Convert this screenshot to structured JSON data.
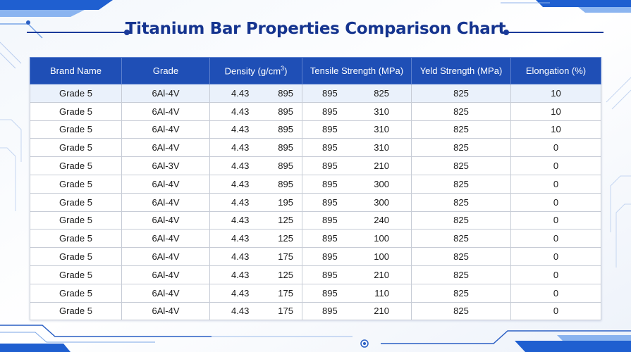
{
  "title": "Titanium Bar Properties Comparison Chart",
  "colors": {
    "header_bg": "#1f4fb6",
    "title": "#15348f",
    "accent": "#1a3a9a"
  },
  "headers": {
    "brand": "Brand Name",
    "grade": "Grade",
    "density": "Density (g/cm",
    "density_sup": "3",
    "density_close": ")",
    "tensile": "Tensile Strength (MPa)",
    "yield": "Yeld Strength (MPa)",
    "elongation": "Elongation (%)"
  },
  "rows": [
    {
      "brand": "Grade 5",
      "grade": "6Al-4V",
      "density": "4.43",
      "density_b": "895",
      "tensile": "895",
      "tensile_b": "825",
      "yield": "825",
      "elongation": "10"
    },
    {
      "brand": "Grade 5",
      "grade": "6Al-4V",
      "density": "4.43",
      "density_b": "895",
      "tensile": "895",
      "tensile_b": "310",
      "yield": "825",
      "elongation": "10"
    },
    {
      "brand": "Grade 5",
      "grade": "6Al-4V",
      "density": "4.43",
      "density_b": "895",
      "tensile": "895",
      "tensile_b": "310",
      "yield": "825",
      "elongation": "10"
    },
    {
      "brand": "Grade 5",
      "grade": "6Al-4V",
      "density": "4.43",
      "density_b": "895",
      "tensile": "895",
      "tensile_b": "310",
      "yield": "825",
      "elongation": "0"
    },
    {
      "brand": "Grade 5",
      "grade": "6Al-3V",
      "density": "4.43",
      "density_b": "895",
      "tensile": "895",
      "tensile_b": "210",
      "yield": "825",
      "elongation": "0"
    },
    {
      "brand": "Grade 5",
      "grade": "6Al-4V",
      "density": "4.43",
      "density_b": "895",
      "tensile": "895",
      "tensile_b": "300",
      "yield": "825",
      "elongation": "0"
    },
    {
      "brand": "Grade 5",
      "grade": "6Al-4V",
      "density": "4.43",
      "density_b": "195",
      "tensile": "895",
      "tensile_b": "300",
      "yield": "825",
      "elongation": "0"
    },
    {
      "brand": "Grade 5",
      "grade": "6Al-4V",
      "density": "4.43",
      "density_b": "125",
      "tensile": "895",
      "tensile_b": "240",
      "yield": "825",
      "elongation": "0"
    },
    {
      "brand": "Grade 5",
      "grade": "6Al-4V",
      "density": "4.43",
      "density_b": "125",
      "tensile": "895",
      "tensile_b": "100",
      "yield": "825",
      "elongation": "0"
    },
    {
      "brand": "Grade 5",
      "grade": "6Al-4V",
      "density": "4.43",
      "density_b": "175",
      "tensile": "895",
      "tensile_b": "100",
      "yield": "825",
      "elongation": "0"
    },
    {
      "brand": "Grade 5",
      "grade": "6Al-4V",
      "density": "4.43",
      "density_b": "125",
      "tensile": "895",
      "tensile_b": "210",
      "yield": "825",
      "elongation": "0"
    },
    {
      "brand": "Grade 5",
      "grade": "6Al-4V",
      "density": "4.43",
      "density_b": "175",
      "tensile": "895",
      "tensile_b": "110",
      "yield": "825",
      "elongation": "0"
    },
    {
      "brand": "Grade 5",
      "grade": "6Al-4V",
      "density": "4.43",
      "density_b": "175",
      "tensile": "895",
      "tensile_b": "210",
      "yield": "825",
      "elongation": "0"
    }
  ]
}
